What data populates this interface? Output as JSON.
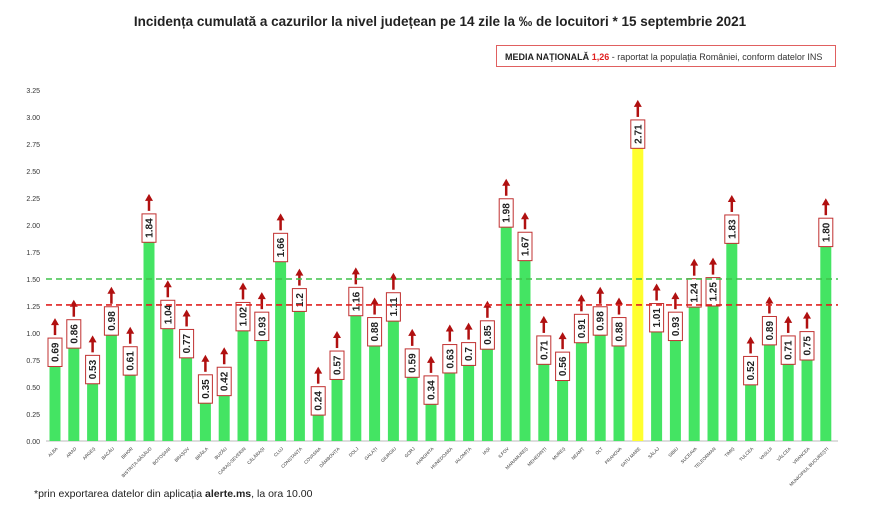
{
  "header": {
    "title": "Incidența cumulată a cazurilor la nivel județean pe 14 zile la ‰ de locuitori * 15 septembrie 2021"
  },
  "media_box": {
    "label": "MEDIA NAȚIONALĂ",
    "value": "1,26",
    "description": "- raportat la populația României, conform datelor INS"
  },
  "footnote": {
    "prefix": "*prin exportarea datelor din aplicația ",
    "bold": "alerte.ms",
    "suffix": ", la ora 10.00"
  },
  "colors": {
    "bar": "#44e463",
    "highlight": "#ffff2e",
    "arrow": "#b01010",
    "national_line": "#e02020",
    "threshold_line": "#3ec24a"
  },
  "chart_data": {
    "type": "bar",
    "title": "Incidența cumulată a cazurilor la nivel județean pe 14 zile la ‰ de locuitori * 15 septembrie 2021",
    "xlabel": "",
    "ylabel": "",
    "ylim": [
      0,
      3.25
    ],
    "yticks": [
      "0.00",
      "0.25",
      "0.50",
      "0.75",
      "1.00",
      "1.25",
      "1.50",
      "1.75",
      "2.00",
      "2.25",
      "2.50",
      "2.75",
      "3.00",
      "3.25"
    ],
    "reference_lines": [
      {
        "name": "media națională",
        "value": 1.26,
        "color": "red",
        "style": "dashed"
      },
      {
        "name": "prag 1.5",
        "value": 1.5,
        "color": "green",
        "style": "dashed"
      }
    ],
    "highlight": "SATU MARE",
    "categories": [
      "ALBA",
      "ARAD",
      "ARGEȘ",
      "BACĂU",
      "BIHOR",
      "BISTRIȚA-NĂSĂUD",
      "BOTOȘANI",
      "BRAȘOV",
      "BRĂILA",
      "BUZĂU",
      "CARAȘ-SEVERIN",
      "CĂLĂRAȘI",
      "CLUJ",
      "CONSTANȚA",
      "COVASNA",
      "DÂMBOVIȚA",
      "DOLJ",
      "GALAȚI",
      "GIURGIU",
      "GORJ",
      "HARGHITA",
      "HUNEDOARA",
      "IALOMIȚA",
      "IAȘI",
      "ILFOV",
      "MARAMUREȘ",
      "MEHEDINȚI",
      "MUREȘ",
      "NEAMȚ",
      "OLT",
      "PRAHOVA",
      "SATU MARE",
      "SĂLAJ",
      "SIBIU",
      "SUCEAVA",
      "TELEORMAN",
      "TIMIȘ",
      "TULCEA",
      "VASLUI",
      "VÂLCEA",
      "VRANCEA",
      "MUNICIPIUL BUCUREȘTI"
    ],
    "values": [
      0.69,
      0.86,
      0.53,
      0.98,
      0.61,
      1.84,
      1.04,
      0.77,
      0.35,
      0.42,
      1.02,
      0.93,
      1.66,
      1.2,
      0.24,
      0.57,
      1.16,
      0.88,
      1.11,
      0.59,
      0.34,
      0.63,
      0.7,
      0.85,
      1.98,
      1.67,
      0.71,
      0.56,
      0.91,
      0.98,
      0.88,
      2.71,
      1.01,
      0.93,
      1.24,
      1.25,
      1.83,
      0.52,
      0.89,
      0.71,
      0.75,
      1.8
    ],
    "labels": [
      "0.69",
      "0.86",
      "0.53",
      "0.98",
      "0.61",
      "1.84",
      "1.04",
      "0.77",
      "0.35",
      "0.42",
      "1.02",
      "0.93",
      "1.66",
      "1.2",
      "0.24",
      "0.57",
      "1.16",
      "0.88",
      "1.11",
      "0.59",
      "0.34",
      "0.63",
      "0.7",
      "0.85",
      "1.98",
      "1.67",
      "0.71",
      "0.56",
      "0.91",
      "0.98",
      "0.88",
      "2.71",
      "1.01",
      "0.93",
      "1.24",
      "1.25",
      "1.83",
      "0.52",
      "0.89",
      "0.71",
      "0.75",
      "1.80"
    ]
  }
}
